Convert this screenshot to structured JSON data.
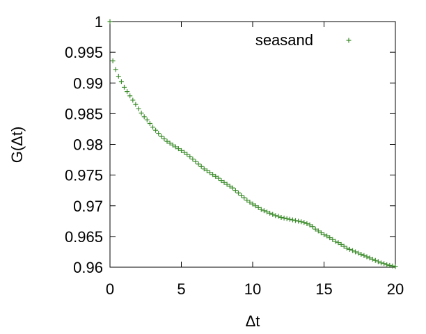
{
  "chart_data": {
    "type": "scatter",
    "title": "",
    "xlabel": "Δt",
    "ylabel": "G(Δt)",
    "xlim": [
      0,
      20
    ],
    "ylim": [
      0.96,
      1.0
    ],
    "xticks": [
      "0",
      "5",
      "10",
      "15",
      "20"
    ],
    "yticks": [
      "0.96",
      "0.965",
      "0.97",
      "0.975",
      "0.98",
      "0.985",
      "0.99",
      "0.995",
      "1"
    ],
    "grid": false,
    "legend_position": "top-right",
    "series": [
      {
        "name": "seasand",
        "color": "#3c8c2c",
        "marker": "plus",
        "x": [
          0,
          0.2,
          0.4,
          0.6,
          0.8,
          1.0,
          1.2,
          1.4,
          1.6,
          1.8,
          2.0,
          2.2,
          2.4,
          2.6,
          2.8,
          3.0,
          3.2,
          3.4,
          3.6,
          3.8,
          4.0,
          4.2,
          4.4,
          4.6,
          4.8,
          5.0,
          5.2,
          5.4,
          5.6,
          5.8,
          6.0,
          6.2,
          6.4,
          6.6,
          6.8,
          7.0,
          7.2,
          7.4,
          7.6,
          7.8,
          8.0,
          8.2,
          8.4,
          8.6,
          8.8,
          9.0,
          9.2,
          9.4,
          9.6,
          9.8,
          10.0,
          10.2,
          10.4,
          10.6,
          10.8,
          11.0,
          11.2,
          11.4,
          11.6,
          11.8,
          12.0,
          12.2,
          12.4,
          12.6,
          12.8,
          13.0,
          13.2,
          13.4,
          13.6,
          13.8,
          14.0,
          14.2,
          14.4,
          14.6,
          14.8,
          15.0,
          15.2,
          15.4,
          15.6,
          15.8,
          16.0,
          16.2,
          16.4,
          16.6,
          16.8,
          17.0,
          17.2,
          17.4,
          17.6,
          17.8,
          18.0,
          18.2,
          18.4,
          18.6,
          18.8,
          19.0,
          19.2,
          19.4,
          19.6,
          19.8,
          20.0
        ],
        "y": [
          1.0,
          0.9936,
          0.9922,
          0.9911,
          0.9902,
          0.9893,
          0.9886,
          0.9879,
          0.9872,
          0.9865,
          0.9858,
          0.9851,
          0.9845,
          0.984,
          0.9834,
          0.9828,
          0.9823,
          0.9818,
          0.9813,
          0.9809,
          0.9805,
          0.9802,
          0.9799,
          0.9796,
          0.9793,
          0.979,
          0.9787,
          0.9784,
          0.978,
          0.9776,
          0.9772,
          0.9768,
          0.9764,
          0.976,
          0.9757,
          0.9754,
          0.9751,
          0.9748,
          0.9745,
          0.9741,
          0.9738,
          0.9735,
          0.9732,
          0.9729,
          0.9725,
          0.9721,
          0.9717,
          0.9713,
          0.9709,
          0.9706,
          0.9703,
          0.97,
          0.9697,
          0.9694,
          0.9692,
          0.969,
          0.9688,
          0.9686,
          0.9684,
          0.9683,
          0.9681,
          0.968,
          0.9679,
          0.9678,
          0.9677,
          0.9676,
          0.9675,
          0.9674,
          0.9673,
          0.9671,
          0.9669,
          0.9666,
          0.9662,
          0.9659,
          0.9656,
          0.9653,
          0.9651,
          0.9648,
          0.9645,
          0.9642,
          0.964,
          0.9637,
          0.9634,
          0.9631,
          0.9629,
          0.9627,
          0.9625,
          0.9623,
          0.9621,
          0.9619,
          0.9617,
          0.9615,
          0.9613,
          0.9611,
          0.9609,
          0.9607,
          0.9606,
          0.9604,
          0.9603,
          0.9602,
          0.9601
        ]
      }
    ]
  }
}
